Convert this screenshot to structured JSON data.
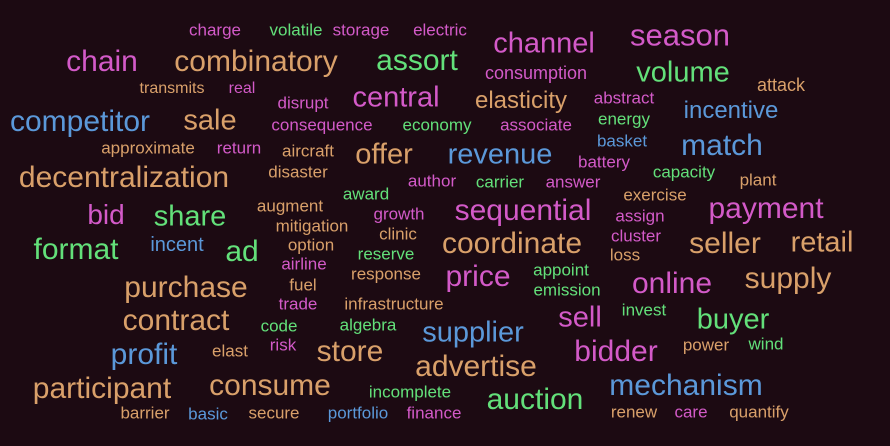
{
  "colors": {
    "background": "#1c0a12",
    "pink": "#d35ac8",
    "tan": "#d9a06a",
    "green": "#63e07a",
    "blue": "#5b98d9"
  },
  "words": [
    {
      "text": "charge",
      "color": "pink"
    },
    {
      "text": "volatile",
      "color": "green"
    },
    {
      "text": "storage",
      "color": "pink"
    },
    {
      "text": "electric",
      "color": "pink"
    },
    {
      "text": "season",
      "color": "pink"
    },
    {
      "text": "channel",
      "color": "pink"
    },
    {
      "text": "chain",
      "color": "pink"
    },
    {
      "text": "combinatory",
      "color": "tan"
    },
    {
      "text": "assort",
      "color": "green"
    },
    {
      "text": "consumption",
      "color": "pink"
    },
    {
      "text": "volume",
      "color": "green"
    },
    {
      "text": "attack",
      "color": "tan"
    },
    {
      "text": "transmits",
      "color": "tan"
    },
    {
      "text": "real",
      "color": "pink"
    },
    {
      "text": "disrupt",
      "color": "pink"
    },
    {
      "text": "central",
      "color": "pink"
    },
    {
      "text": "elasticity",
      "color": "tan"
    },
    {
      "text": "abstract",
      "color": "pink"
    },
    {
      "text": "incentive",
      "color": "blue"
    },
    {
      "text": "competitor",
      "color": "blue"
    },
    {
      "text": "sale",
      "color": "tan"
    },
    {
      "text": "consequence",
      "color": "pink"
    },
    {
      "text": "economy",
      "color": "green"
    },
    {
      "text": "associate",
      "color": "pink"
    },
    {
      "text": "energy",
      "color": "green"
    },
    {
      "text": "basket",
      "color": "blue"
    },
    {
      "text": "match",
      "color": "blue"
    },
    {
      "text": "approximate",
      "color": "tan"
    },
    {
      "text": "return",
      "color": "pink"
    },
    {
      "text": "aircraft",
      "color": "tan"
    },
    {
      "text": "offer",
      "color": "tan"
    },
    {
      "text": "revenue",
      "color": "blue"
    },
    {
      "text": "battery",
      "color": "pink"
    },
    {
      "text": "capacity",
      "color": "green"
    },
    {
      "text": "plant",
      "color": "tan"
    },
    {
      "text": "decentralization",
      "color": "tan"
    },
    {
      "text": "disaster",
      "color": "tan"
    },
    {
      "text": "author",
      "color": "pink"
    },
    {
      "text": "carrier",
      "color": "green"
    },
    {
      "text": "answer",
      "color": "pink"
    },
    {
      "text": "award",
      "color": "green"
    },
    {
      "text": "exercise",
      "color": "tan"
    },
    {
      "text": "bid",
      "color": "pink"
    },
    {
      "text": "share",
      "color": "green"
    },
    {
      "text": "augment",
      "color": "tan"
    },
    {
      "text": "growth",
      "color": "pink"
    },
    {
      "text": "sequential",
      "color": "pink"
    },
    {
      "text": "assign",
      "color": "pink"
    },
    {
      "text": "payment",
      "color": "pink"
    },
    {
      "text": "mitigation",
      "color": "tan"
    },
    {
      "text": "clinic",
      "color": "tan"
    },
    {
      "text": "cluster",
      "color": "pink"
    },
    {
      "text": "format",
      "color": "green"
    },
    {
      "text": "incent",
      "color": "blue"
    },
    {
      "text": "ad",
      "color": "green"
    },
    {
      "text": "option",
      "color": "tan"
    },
    {
      "text": "reserve",
      "color": "green"
    },
    {
      "text": "coordinate",
      "color": "tan"
    },
    {
      "text": "loss",
      "color": "tan"
    },
    {
      "text": "seller",
      "color": "tan"
    },
    {
      "text": "retail",
      "color": "tan"
    },
    {
      "text": "airline",
      "color": "pink"
    },
    {
      "text": "response",
      "color": "tan"
    },
    {
      "text": "price",
      "color": "pink"
    },
    {
      "text": "appoint",
      "color": "green"
    },
    {
      "text": "online",
      "color": "pink"
    },
    {
      "text": "supply",
      "color": "tan"
    },
    {
      "text": "purchase",
      "color": "tan"
    },
    {
      "text": "fuel",
      "color": "tan"
    },
    {
      "text": "emission",
      "color": "green"
    },
    {
      "text": "trade",
      "color": "pink"
    },
    {
      "text": "infrastructure",
      "color": "tan"
    },
    {
      "text": "invest",
      "color": "green"
    },
    {
      "text": "contract",
      "color": "tan"
    },
    {
      "text": "sell",
      "color": "pink"
    },
    {
      "text": "buyer",
      "color": "green"
    },
    {
      "text": "code",
      "color": "green"
    },
    {
      "text": "algebra",
      "color": "green"
    },
    {
      "text": "supplier",
      "color": "blue"
    },
    {
      "text": "profit",
      "color": "blue"
    },
    {
      "text": "elast",
      "color": "tan"
    },
    {
      "text": "risk",
      "color": "pink"
    },
    {
      "text": "store",
      "color": "tan"
    },
    {
      "text": "bidder",
      "color": "pink"
    },
    {
      "text": "power",
      "color": "tan"
    },
    {
      "text": "wind",
      "color": "green"
    },
    {
      "text": "advertise",
      "color": "tan"
    },
    {
      "text": "participant",
      "color": "tan"
    },
    {
      "text": "consume",
      "color": "tan"
    },
    {
      "text": "mechanism",
      "color": "blue"
    },
    {
      "text": "incomplete",
      "color": "green"
    },
    {
      "text": "auction",
      "color": "green"
    },
    {
      "text": "barrier",
      "color": "tan"
    },
    {
      "text": "basic",
      "color": "blue"
    },
    {
      "text": "secure",
      "color": "tan"
    },
    {
      "text": "portfolio",
      "color": "blue"
    },
    {
      "text": "finance",
      "color": "pink"
    },
    {
      "text": "renew",
      "color": "tan"
    },
    {
      "text": "care",
      "color": "pink"
    },
    {
      "text": "quantify",
      "color": "tan"
    }
  ]
}
